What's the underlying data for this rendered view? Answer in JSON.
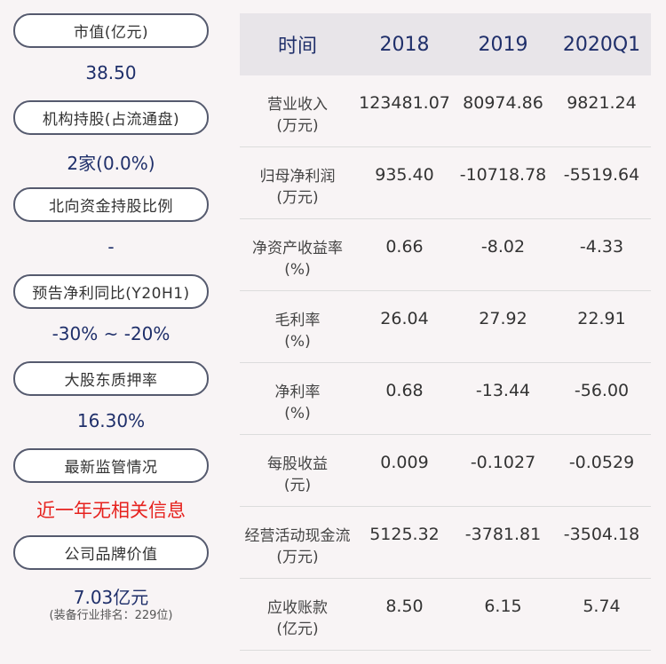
{
  "left_panel": {
    "items": [
      {
        "label": "市值(亿元)",
        "value": "38.50"
      },
      {
        "label": "机构持股(占流通盘)",
        "value": "2家(0.0%)"
      },
      {
        "label": "北向资金持股比例",
        "value": "-"
      },
      {
        "label": "预告净利同比(Y20H1)",
        "value": "-30% ~ -20%"
      },
      {
        "label": "大股东质押率",
        "value": "16.30%"
      },
      {
        "label": "最新监管情况",
        "value": "近一年无相关信息"
      },
      {
        "label": "公司品牌价值",
        "value": "7.03亿元",
        "note": "(装备行业排名：229位)"
      }
    ],
    "highlight_color": "#e6221e",
    "value_color": "#1f2f6a"
  },
  "table": {
    "headers": [
      "时间",
      "2018",
      "2019",
      "2020Q1"
    ],
    "rows": [
      {
        "label": "营业收入",
        "unit": "(万元)",
        "values": [
          "123481.07",
          "80974.86",
          "9821.24"
        ]
      },
      {
        "label": "归母净利润",
        "unit": "(万元)",
        "values": [
          "935.40",
          "-10718.78",
          "-5519.64"
        ]
      },
      {
        "label": "净资产收益率",
        "unit": "(%)",
        "values": [
          "0.66",
          "-8.02",
          "-4.33"
        ]
      },
      {
        "label": "毛利率",
        "unit": "(%)",
        "values": [
          "26.04",
          "27.92",
          "22.91"
        ]
      },
      {
        "label": "净利率",
        "unit": "(%)",
        "values": [
          "0.68",
          "-13.44",
          "-56.00"
        ]
      },
      {
        "label": "每股收益",
        "unit": "(元)",
        "values": [
          "0.009",
          "-0.1027",
          "-0.0529"
        ]
      },
      {
        "label": "经营活动现金流",
        "unit": "(万元)",
        "values": [
          "5125.32",
          "-3781.81",
          "-3504.18"
        ]
      },
      {
        "label": "应收账款",
        "unit": "(亿元)",
        "values": [
          "8.50",
          "6.15",
          "5.74"
        ]
      }
    ]
  }
}
